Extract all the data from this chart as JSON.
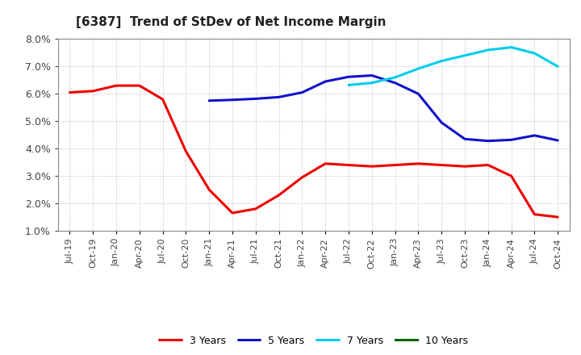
{
  "title": "[6387]  Trend of StDev of Net Income Margin",
  "title_fontsize": 11,
  "background_color": "#ffffff",
  "grid_color": "#bbbbbb",
  "ylim": [
    0.01,
    0.08
  ],
  "yticks": [
    0.01,
    0.02,
    0.03,
    0.04,
    0.05,
    0.06,
    0.07,
    0.08
  ],
  "series": [
    {
      "name": "3 Years",
      "color": "#ee0000",
      "x_indices": [
        0,
        1,
        2,
        3,
        4,
        5,
        6,
        7,
        8,
        9,
        10,
        11,
        12,
        13,
        14,
        15,
        16,
        17,
        18,
        19,
        20,
        21
      ],
      "values": [
        0.0605,
        0.061,
        0.063,
        0.063,
        0.058,
        0.039,
        0.025,
        0.0165,
        0.018,
        0.023,
        0.0295,
        0.0345,
        0.034,
        0.0335,
        0.034,
        0.0345,
        0.034,
        0.0335,
        0.034,
        0.03,
        0.016,
        0.015
      ]
    },
    {
      "name": "5 Years",
      "color": "#1111cc",
      "x_indices": [
        6,
        7,
        8,
        9,
        10,
        11,
        12,
        13,
        14,
        15,
        16,
        17,
        18,
        19,
        20,
        21
      ],
      "values": [
        0.0575,
        0.0578,
        0.0582,
        0.0588,
        0.0605,
        0.0645,
        0.0662,
        0.0667,
        0.064,
        0.06,
        0.0495,
        0.0435,
        0.0428,
        0.0432,
        0.0448,
        0.043
      ]
    },
    {
      "name": "7 Years",
      "color": "#00ccee",
      "x_indices": [
        12,
        13,
        14,
        15,
        16,
        17,
        18,
        19,
        20,
        21
      ],
      "values": [
        0.0632,
        0.064,
        0.066,
        0.0692,
        0.072,
        0.074,
        0.076,
        0.077,
        0.0748,
        0.07
      ]
    },
    {
      "name": "10 Years",
      "color": "#006400",
      "x_indices": [],
      "values": []
    }
  ],
  "xtick_labels": [
    "Jul-19",
    "Oct-19",
    "Jan-20",
    "Apr-20",
    "Jul-20",
    "Oct-20",
    "Jan-21",
    "Apr-21",
    "Jul-21",
    "Oct-21",
    "Jan-22",
    "Apr-22",
    "Jul-22",
    "Oct-22",
    "Jan-23",
    "Apr-23",
    "Jul-23",
    "Oct-23",
    "Jan-24",
    "Apr-24",
    "Jul-24",
    "Oct-24"
  ]
}
